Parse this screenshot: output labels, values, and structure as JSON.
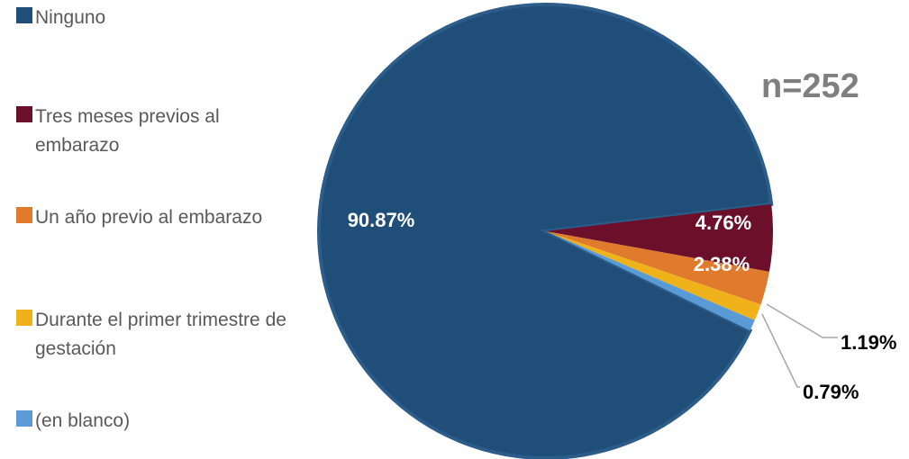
{
  "n_label": "n=252",
  "chart_data": {
    "type": "pie",
    "title": "",
    "legend_position": "left",
    "slices": [
      {
        "label": "Ninguno",
        "value": 90.87,
        "display": "90.87%",
        "color": "#1f4e79",
        "label_color": "#ffffff"
      },
      {
        "label": "Tres meses previos al embarazo",
        "value": 4.76,
        "display": "4.76%",
        "color": "#6b0f2b",
        "label_color": "#ffffff"
      },
      {
        "label": "Un año previo al embarazo",
        "value": 2.38,
        "display": "2.38%",
        "color": "#e07a2c",
        "label_color": "#ffffff"
      },
      {
        "label": "Durante el primer trimestre de gestación",
        "value": 1.19,
        "display": "1.19%",
        "color": "#f0b21a",
        "label_color": "#000000"
      },
      {
        "label": "(en blanco)",
        "value": 0.79,
        "display": "0.79%",
        "color": "#5b9bd5",
        "label_color": "#000000"
      }
    ]
  }
}
